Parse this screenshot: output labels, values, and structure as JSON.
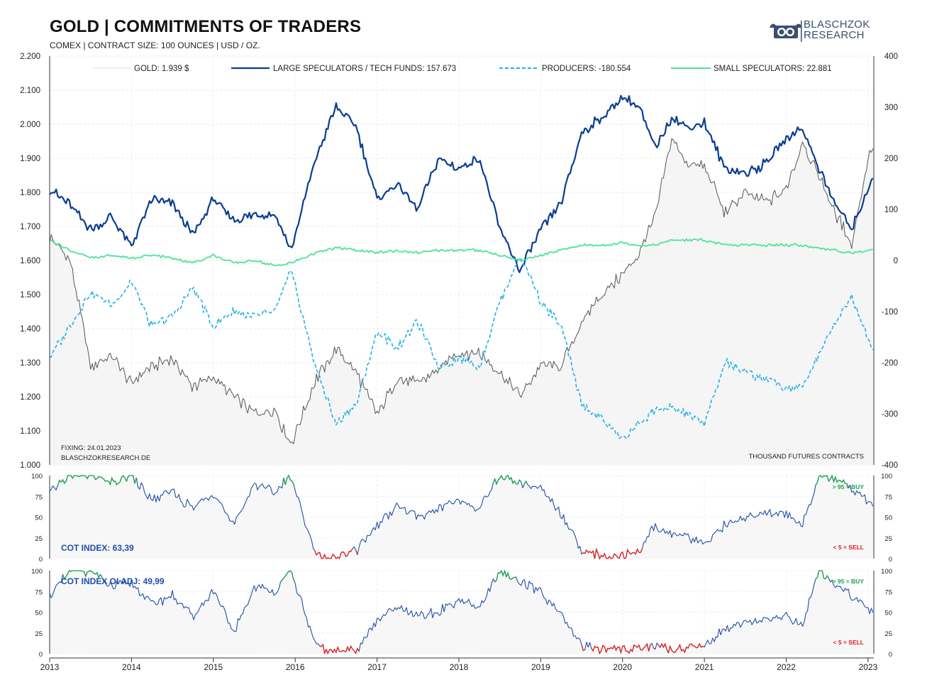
{
  "header": {
    "title": "GOLD | COMMITMENTS OF TRADERS",
    "subtitle": "COMEX | CONTRACT SIZE: 100 OUNCES | USD / OZ.",
    "logo_line1": "BLASCHZOK",
    "logo_line2": "RESEARCH"
  },
  "notes": {
    "fixing": "FIXING: 24.01.2023",
    "website": "BLASCHZOKRESEARCH.DE",
    "units": "THOUSAND  FUTURES  CONTRACTS"
  },
  "colors": {
    "gold": "#555555",
    "large_speculators": "#0a3d91",
    "producers": "#22b0e6",
    "small_speculators": "#4ee39a",
    "cot_line": "#1f4fa8",
    "buy": "#17a34a",
    "sell": "#e01b1b"
  },
  "chart_data": [
    {
      "type": "line",
      "title": "GOLD | COMMITMENTS OF TRADERS",
      "x_ticks": [
        "2013",
        "2014",
        "2015",
        "2016",
        "2017",
        "2018",
        "2019",
        "2020",
        "2021",
        "2022",
        "2023"
      ],
      "x_range": [
        2013.0,
        2023.07
      ],
      "left_axis": {
        "ylim": [
          1000,
          2200
        ],
        "ticks": [
          "1.000",
          "1.100",
          "1.200",
          "1.300",
          "1.400",
          "1.500",
          "1.600",
          "1.700",
          "1.800",
          "1.900",
          "2.000",
          "2.100",
          "2.200"
        ]
      },
      "right_axis": {
        "ylim": [
          -400,
          400
        ],
        "ticks": [
          "-400",
          "-300",
          "-200",
          "-100",
          "0",
          "100",
          "200",
          "300",
          "400"
        ]
      },
      "legend_position": "top",
      "grid": true,
      "series": [
        {
          "name": "GOLD: 1.939 $",
          "axis": "left",
          "style": "solid-thin",
          "x": [
            2013.0,
            2013.25,
            2013.5,
            2013.75,
            2014.0,
            2014.25,
            2014.5,
            2014.75,
            2015.0,
            2015.25,
            2015.5,
            2015.75,
            2015.95,
            2016.25,
            2016.5,
            2016.75,
            2017.0,
            2017.25,
            2017.5,
            2017.75,
            2018.0,
            2018.25,
            2018.5,
            2018.75,
            2019.0,
            2019.25,
            2019.5,
            2019.75,
            2020.0,
            2020.2,
            2020.4,
            2020.6,
            2020.8,
            2021.0,
            2021.25,
            2021.5,
            2021.75,
            2022.0,
            2022.2,
            2022.4,
            2022.6,
            2022.8,
            2023.0,
            2023.07
          ],
          "y": [
            1670,
            1600,
            1290,
            1320,
            1240,
            1290,
            1310,
            1230,
            1260,
            1200,
            1150,
            1160,
            1060,
            1250,
            1340,
            1270,
            1150,
            1250,
            1240,
            1280,
            1330,
            1330,
            1270,
            1200,
            1290,
            1290,
            1420,
            1500,
            1560,
            1620,
            1730,
            1960,
            1880,
            1880,
            1740,
            1800,
            1770,
            1810,
            1950,
            1850,
            1740,
            1650,
            1900,
            1939
          ]
        },
        {
          "name": "LARGE SPECULATORS / TECH FUNDS: 157.673",
          "axis": "right",
          "style": "solid-thick",
          "x": [
            2013.0,
            2013.25,
            2013.5,
            2013.75,
            2014.0,
            2014.25,
            2014.5,
            2014.75,
            2015.0,
            2015.25,
            2015.5,
            2015.75,
            2015.95,
            2016.25,
            2016.5,
            2016.75,
            2017.0,
            2017.25,
            2017.5,
            2017.75,
            2018.0,
            2018.25,
            2018.5,
            2018.75,
            2019.0,
            2019.25,
            2019.5,
            2019.75,
            2020.0,
            2020.2,
            2020.4,
            2020.6,
            2020.8,
            2021.0,
            2021.25,
            2021.5,
            2021.75,
            2022.0,
            2022.2,
            2022.4,
            2022.6,
            2022.8,
            2023.0,
            2023.07
          ],
          "y": [
            140,
            110,
            60,
            85,
            30,
            120,
            110,
            50,
            120,
            80,
            90,
            90,
            20,
            200,
            300,
            260,
            120,
            150,
            100,
            200,
            180,
            200,
            60,
            -20,
            60,
            110,
            250,
            280,
            320,
            300,
            220,
            280,
            260,
            270,
            180,
            170,
            190,
            240,
            260,
            180,
            110,
            60,
            140,
            158
          ]
        },
        {
          "name": "PRODUCERS: -180.554",
          "axis": "right",
          "style": "dashed",
          "x": [
            2013.0,
            2013.25,
            2013.5,
            2013.75,
            2014.0,
            2014.25,
            2014.5,
            2014.75,
            2015.0,
            2015.25,
            2015.5,
            2015.75,
            2015.95,
            2016.25,
            2016.5,
            2016.75,
            2017.0,
            2017.25,
            2017.5,
            2017.75,
            2018.0,
            2018.25,
            2018.5,
            2018.75,
            2019.0,
            2019.25,
            2019.5,
            2019.75,
            2020.0,
            2020.2,
            2020.4,
            2020.6,
            2020.8,
            2021.0,
            2021.25,
            2021.5,
            2021.75,
            2022.0,
            2022.2,
            2022.4,
            2022.6,
            2022.8,
            2023.0,
            2023.07
          ],
          "y": [
            -190,
            -130,
            -60,
            -90,
            -40,
            -130,
            -110,
            -50,
            -130,
            -100,
            -110,
            -100,
            -20,
            -210,
            -320,
            -280,
            -140,
            -170,
            -120,
            -210,
            -190,
            -210,
            -80,
            10,
            -80,
            -130,
            -280,
            -310,
            -350,
            -320,
            -290,
            -290,
            -300,
            -320,
            -200,
            -220,
            -230,
            -250,
            -250,
            -180,
            -120,
            -70,
            -150,
            -181
          ]
        },
        {
          "name": "SMALL SPECULATORS: 22.881",
          "axis": "right",
          "style": "solid-medium",
          "x": [
            2013.0,
            2013.25,
            2013.5,
            2013.75,
            2014.0,
            2014.25,
            2014.5,
            2014.75,
            2015.0,
            2015.25,
            2015.5,
            2015.75,
            2015.95,
            2016.25,
            2016.5,
            2016.75,
            2017.0,
            2017.25,
            2017.5,
            2017.75,
            2018.0,
            2018.25,
            2018.5,
            2018.75,
            2019.0,
            2019.25,
            2019.5,
            2019.75,
            2020.0,
            2020.2,
            2020.4,
            2020.6,
            2020.8,
            2021.0,
            2021.25,
            2021.5,
            2021.75,
            2022.0,
            2022.2,
            2022.4,
            2022.6,
            2022.8,
            2023.0,
            2023.07
          ],
          "y": [
            40,
            20,
            5,
            10,
            5,
            10,
            5,
            -5,
            10,
            -5,
            0,
            -10,
            -5,
            15,
            25,
            20,
            15,
            20,
            15,
            20,
            20,
            20,
            10,
            0,
            10,
            20,
            30,
            30,
            35,
            30,
            30,
            40,
            40,
            40,
            30,
            30,
            30,
            30,
            30,
            25,
            20,
            15,
            20,
            23
          ]
        }
      ]
    },
    {
      "type": "line",
      "title": "",
      "annotation": "COT INDEX: 63,39",
      "x_range": [
        2013.0,
        2023.07
      ],
      "ylim": [
        0,
        100
      ],
      "y_ticks": [
        "0",
        "25",
        "50",
        "75",
        "100"
      ],
      "thresholds": {
        "buy": 95,
        "sell": 5,
        "buy_label": "> 95 = BUY",
        "sell_label": "< 5 = SELL"
      },
      "series": [
        {
          "name": "COT INDEX",
          "x": [
            2013.0,
            2013.25,
            2013.5,
            2013.75,
            2014.0,
            2014.25,
            2014.5,
            2014.75,
            2015.0,
            2015.25,
            2015.5,
            2015.75,
            2015.95,
            2016.25,
            2016.5,
            2016.75,
            2017.0,
            2017.25,
            2017.5,
            2017.75,
            2018.0,
            2018.25,
            2018.5,
            2018.75,
            2019.0,
            2019.25,
            2019.5,
            2019.75,
            2020.0,
            2020.2,
            2020.4,
            2020.6,
            2020.8,
            2021.0,
            2021.25,
            2021.5,
            2021.75,
            2022.0,
            2022.2,
            2022.4,
            2022.6,
            2022.8,
            2023.0,
            2023.07
          ],
          "y": [
            80,
            100,
            100,
            90,
            100,
            70,
            80,
            60,
            80,
            40,
            90,
            80,
            100,
            5,
            0,
            10,
            40,
            65,
            50,
            60,
            70,
            60,
            100,
            90,
            85,
            55,
            8,
            3,
            5,
            10,
            40,
            30,
            25,
            20,
            40,
            50,
            55,
            55,
            40,
            100,
            95,
            85,
            70,
            63
          ]
        }
      ]
    },
    {
      "type": "line",
      "title": "",
      "annotation": "COT INDEX OI ADJ: 49,99",
      "x_range": [
        2013.0,
        2023.07
      ],
      "ylim": [
        0,
        100
      ],
      "y_ticks": [
        "0",
        "25",
        "50",
        "75",
        "100"
      ],
      "thresholds": {
        "buy": 95,
        "sell": 5,
        "buy_label": "> 95 = BUY",
        "sell_label": "< 5 = SELL"
      },
      "series": [
        {
          "name": "COT INDEX OI ADJ",
          "x": [
            2013.0,
            2013.25,
            2013.5,
            2013.75,
            2014.0,
            2014.25,
            2014.5,
            2014.75,
            2015.0,
            2015.25,
            2015.5,
            2015.75,
            2015.95,
            2016.25,
            2016.5,
            2016.75,
            2017.0,
            2017.25,
            2017.5,
            2017.75,
            2018.0,
            2018.25,
            2018.5,
            2018.75,
            2019.0,
            2019.25,
            2019.5,
            2019.75,
            2020.0,
            2020.2,
            2020.4,
            2020.6,
            2020.8,
            2021.0,
            2021.25,
            2021.5,
            2021.75,
            2022.0,
            2022.2,
            2022.4,
            2022.6,
            2022.8,
            2023.0,
            2023.07
          ],
          "y": [
            70,
            100,
            100,
            80,
            85,
            60,
            70,
            45,
            75,
            25,
            80,
            75,
            100,
            8,
            3,
            5,
            40,
            55,
            45,
            50,
            65,
            55,
            100,
            85,
            75,
            45,
            10,
            5,
            5,
            8,
            10,
            5,
            8,
            10,
            30,
            40,
            40,
            45,
            35,
            100,
            85,
            70,
            55,
            50
          ]
        }
      ]
    }
  ]
}
